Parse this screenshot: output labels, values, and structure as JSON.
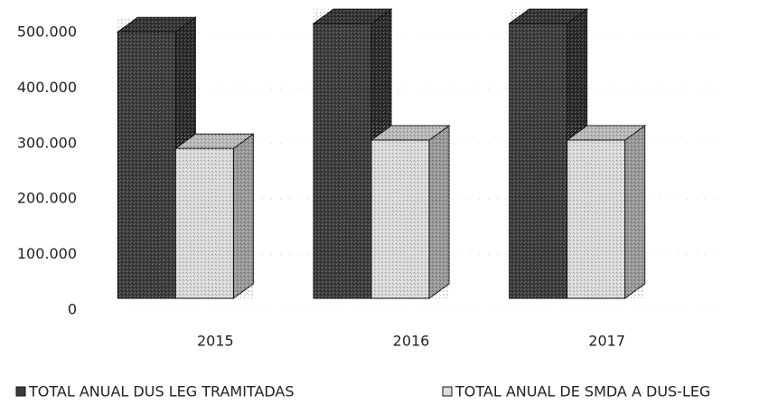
{
  "chart_data": {
    "type": "bar3d",
    "categories": [
      "2015",
      "2016",
      "2017"
    ],
    "series": [
      {
        "name": "TOTAL ANUAL DUS LEG TRAMITADAS",
        "color": "#3c3c3c",
        "values": [
          480000,
          495000,
          495000
        ]
      },
      {
        "name": "TOTAL ANUAL DE SMDA A DUS-LEG",
        "color": "#dcdcdc",
        "values": [
          270000,
          285000,
          285000
        ]
      }
    ],
    "ylim": [
      0,
      500000
    ],
    "yticks": [
      0,
      {
        "value": 100000,
        "label": "100.000"
      },
      {
        "value": 200000,
        "label": "200.000"
      },
      {
        "value": 300000,
        "label": "300.000"
      },
      {
        "value": 400000,
        "label": "400.000"
      },
      {
        "value": 500000,
        "label": "500.000"
      }
    ],
    "grid": true,
    "legend": "bottom"
  }
}
